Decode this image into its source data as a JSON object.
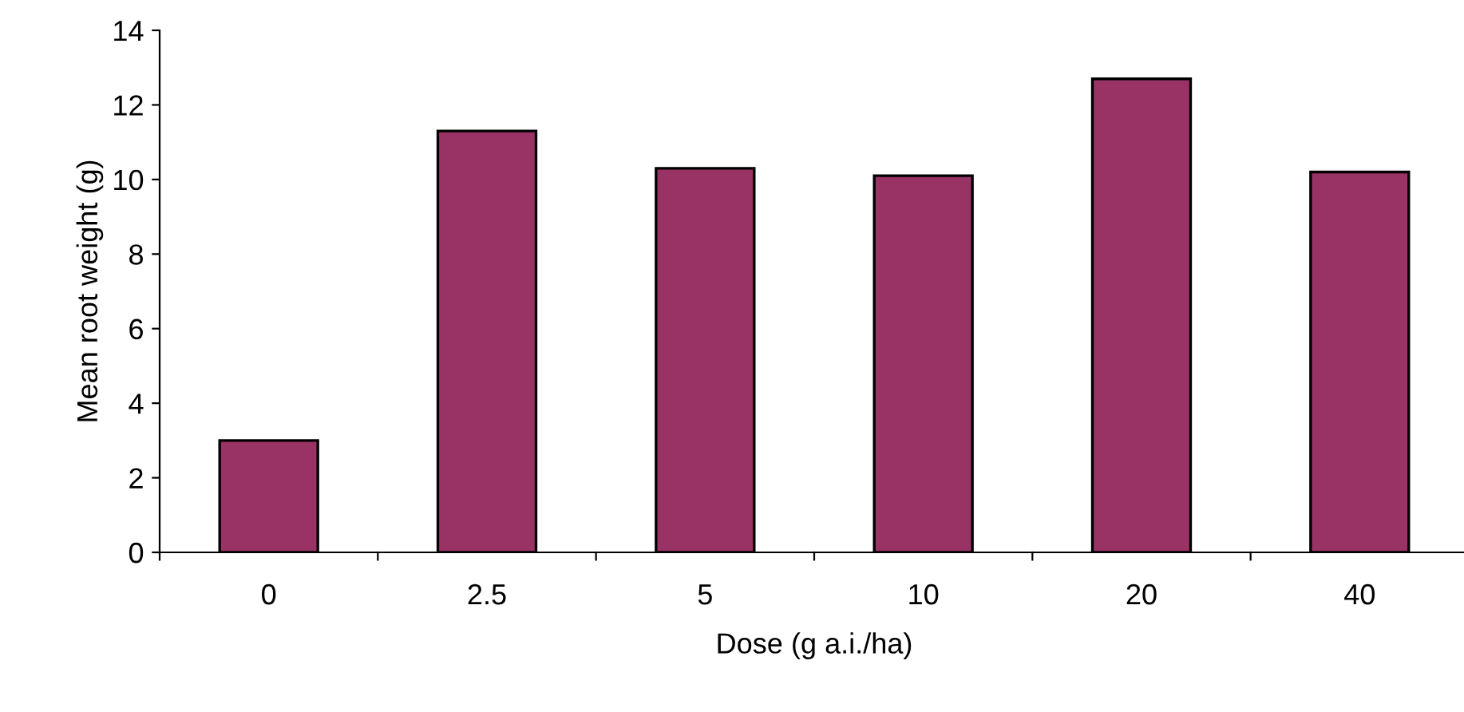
{
  "chart_data": {
    "type": "bar",
    "xlabel": "Dose (g a.i./ha)",
    "ylabel": "Mean root weight (g)",
    "categories": [
      "0",
      "2.5",
      "5",
      "10",
      "20",
      "40"
    ],
    "values": [
      3.0,
      11.3,
      10.3,
      10.1,
      12.7,
      10.2
    ],
    "color": "#993366",
    "ylim": [
      0,
      14
    ],
    "yticks": [
      0,
      2,
      4,
      6,
      8,
      10,
      12,
      14
    ],
    "grid": false
  }
}
